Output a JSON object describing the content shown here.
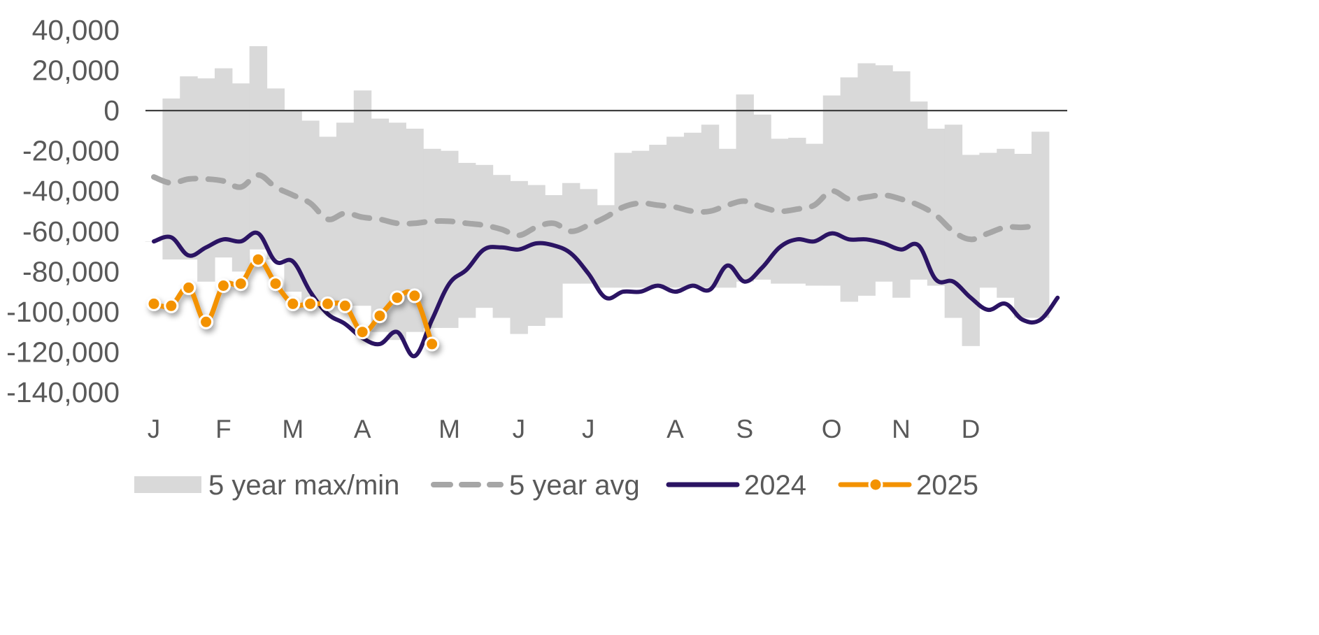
{
  "chart_data": {
    "type": "line",
    "title": "",
    "xlabel": "",
    "ylabel": "",
    "ylim": [
      -140000,
      40000
    ],
    "y_ticks": [
      "40,000",
      "20,000",
      "0",
      "-20,000",
      "-40,000",
      "-60,000",
      "-80,000",
      "-100,000",
      "-120,000",
      "-140,000"
    ],
    "x_ticks": [
      {
        "label": "J",
        "week": 1
      },
      {
        "label": "F",
        "week": 5
      },
      {
        "label": "M",
        "week": 9
      },
      {
        "label": "A",
        "week": 13
      },
      {
        "label": "M",
        "week": 18
      },
      {
        "label": "J",
        "week": 22
      },
      {
        "label": "J",
        "week": 26
      },
      {
        "label": "A",
        "week": 31
      },
      {
        "label": "S",
        "week": 35
      },
      {
        "label": "O",
        "week": 40
      },
      {
        "label": "N",
        "week": 44
      },
      {
        "label": "D",
        "week": 48
      }
    ],
    "grid": false,
    "zero_line": true,
    "legend_position": "bottom",
    "series": [
      {
        "name": "5 year max/min",
        "kind": "band",
        "color": "#d9d9d9",
        "max": [
          -65000,
          6000,
          17000,
          16000,
          21000,
          13500,
          32000,
          11000,
          0,
          -5000,
          -13000,
          -6000,
          10000,
          -4000,
          -6000,
          -9000,
          -19000,
          -20000,
          -26000,
          -27000,
          -32000,
          -35000,
          -37000,
          -42000,
          -36000,
          -39000,
          -47000,
          -21000,
          -20000,
          -17000,
          -13000,
          -11000,
          -7000,
          -19000,
          8000,
          -2000,
          -14000,
          -13500,
          -16500,
          7500,
          16500,
          23500,
          22500,
          19500,
          4500,
          -9000,
          -7000,
          -22000,
          -21000,
          -19000,
          -21500,
          -10500
        ],
        "min": [
          -65000,
          -74000,
          -74000,
          -85000,
          -73000,
          -80000,
          -69000,
          -74000,
          -90000,
          -97000,
          -97000,
          -97000,
          -97000,
          -110000,
          -114000,
          -110000,
          -108000,
          -108000,
          -103000,
          -98000,
          -103000,
          -111000,
          -107000,
          -103000,
          -86000,
          -86000,
          -88000,
          -88000,
          -88000,
          -88000,
          -88000,
          -88000,
          -88000,
          -88000,
          -85000,
          -84000,
          -86000,
          -86000,
          -87000,
          -87000,
          -95000,
          -92000,
          -85000,
          -93000,
          -84000,
          -87000,
          -103000,
          -117000,
          -88000,
          -93000,
          -103000,
          -103000
        ]
      },
      {
        "name": "5 year avg",
        "kind": "dashed",
        "color": "#a6a6a6",
        "values": [
          -33000,
          -36000,
          -34000,
          -34000,
          -35000,
          -38000,
          -32000,
          -38000,
          -42000,
          -46000,
          -54000,
          -51000,
          -53000,
          -54000,
          -56000,
          -56000,
          -55000,
          -55000,
          -56000,
          -57000,
          -59000,
          -62000,
          -58000,
          -56000,
          -60000,
          -57000,
          -53000,
          -48000,
          -46000,
          -47000,
          -48000,
          -50000,
          -50000,
          -47000,
          -45000,
          -48000,
          -50000,
          -49000,
          -47000,
          -40000,
          -44000,
          -43000,
          -42000,
          -44000,
          -47000,
          -52000,
          -60000,
          -64000,
          -61000,
          -58000,
          -58000,
          -57000
        ]
      },
      {
        "name": "2024",
        "kind": "line",
        "color": "#2b1463",
        "values": [
          -65000,
          -63000,
          -72000,
          -68000,
          -64000,
          -65000,
          -61000,
          -75000,
          -75000,
          -90000,
          -101000,
          -106000,
          -113000,
          -116000,
          -110000,
          -122000,
          -104000,
          -86000,
          -79000,
          -69000,
          -68000,
          -69000,
          -66000,
          -67000,
          -71000,
          -81000,
          -93000,
          -90000,
          -90000,
          -87000,
          -90000,
          -87000,
          -89000,
          -77000,
          -85000,
          -78000,
          -68000,
          -64000,
          -65000,
          -61000,
          -64000,
          -64000,
          -66000,
          -69000,
          -67000,
          -84000,
          -85000,
          -93000,
          -99000,
          -96000,
          -104000,
          -104000,
          -93000
        ]
      },
      {
        "name": "2025",
        "kind": "line-markers",
        "color": "#f39200",
        "values": [
          -96000,
          -97000,
          -88000,
          -105000,
          -87000,
          -86000,
          -74000,
          -86000,
          -96000,
          -96000,
          -96000,
          -97000,
          -110000,
          -102000,
          -93000,
          -92000,
          -116000
        ]
      }
    ]
  }
}
